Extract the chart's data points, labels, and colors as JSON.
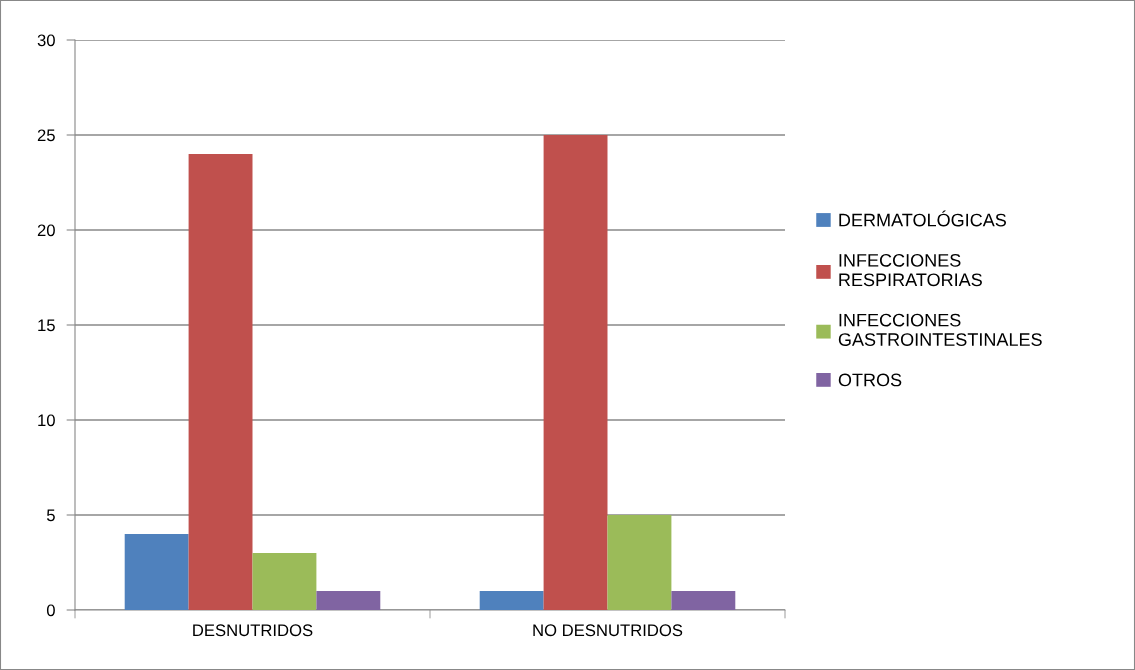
{
  "chart_data": {
    "type": "bar",
    "categories": [
      "DESNUTRIDOS",
      "NO DESNUTRIDOS"
    ],
    "series": [
      {
        "name": "DERMATOLÓGICAS",
        "color": "#4f81bd",
        "values": [
          4,
          1
        ]
      },
      {
        "name": "INFECCIONES\nRESPIRATORIAS",
        "color": "#c0504d",
        "values": [
          24,
          25
        ]
      },
      {
        "name": "INFECCIONES\nGASTROINTESTINALES",
        "color": "#9bbb59",
        "values": [
          3,
          5
        ]
      },
      {
        "name": "OTROS",
        "color": "#8064a2",
        "values": [
          1,
          1
        ]
      }
    ],
    "ylim": [
      0,
      30
    ],
    "yticks": [
      0,
      5,
      10,
      15,
      20,
      25,
      30
    ],
    "grid": "y",
    "legend": "right"
  }
}
